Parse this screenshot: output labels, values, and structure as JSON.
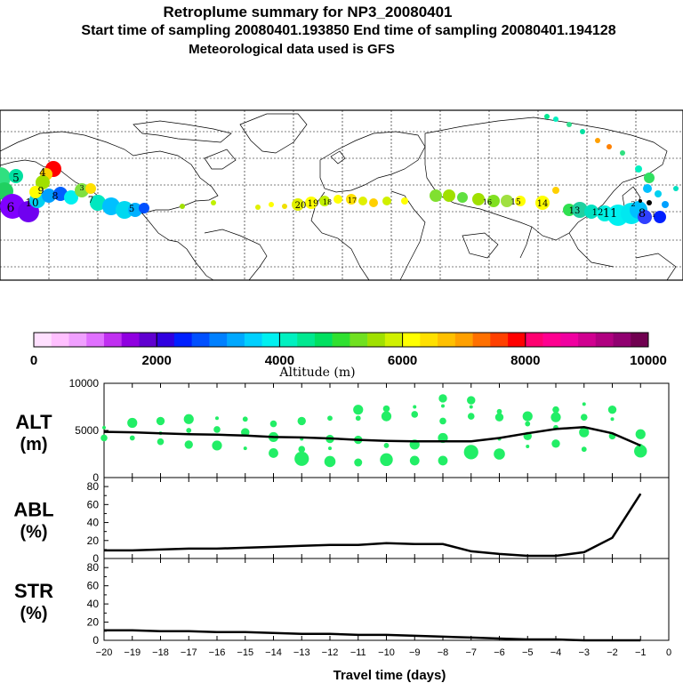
{
  "header": {
    "title": "Retroplume summary for NP3_20080401",
    "sampling": "Start time of sampling 20080401.193850     End time of sampling 20080401.194128",
    "met": "Meteorological data used is GFS"
  },
  "map": {
    "labels": [
      "5",
      "4",
      "6",
      "10",
      "9",
      "8",
      "7",
      "5",
      "3",
      "20",
      "19",
      "18",
      "17",
      "16",
      "15",
      "14",
      "13",
      "12",
      "11",
      "8",
      "2",
      "1"
    ],
    "colors": {
      "coast": "#000000",
      "grid": "#000000"
    }
  },
  "colorbar": {
    "ticks": [
      "0",
      "2000",
      "4000",
      "6000",
      "8000",
      "10000"
    ],
    "label": "Altitude (m)",
    "colors": [
      "#ffe0ff",
      "#ffc0ff",
      "#f0a0ff",
      "#e070ff",
      "#c030f0",
      "#9000e0",
      "#6000d0",
      "#3000e0",
      "#0020ff",
      "#0050ff",
      "#0080ff",
      "#00a8ff",
      "#00d0ff",
      "#00f0f0",
      "#00f0c0",
      "#00e890",
      "#00e060",
      "#30e030",
      "#70e020",
      "#a0e000",
      "#d0f000",
      "#ffff00",
      "#ffe000",
      "#ffc000",
      "#ffa000",
      "#ff7000",
      "#ff4000",
      "#ff0000",
      "#ff0070",
      "#ff0090",
      "#f000a0",
      "#d00090",
      "#b00080",
      "#900070",
      "#700050"
    ]
  },
  "chart_data": [
    {
      "type": "line",
      "name": "ALT",
      "ylabel": "ALT\n(m)",
      "ylabel_top": "ALT",
      "ylabel_bottom": "(m)",
      "x": [
        -20,
        -19,
        -18,
        -17,
        -16,
        -15,
        -14,
        -13,
        -12,
        -11,
        -10,
        -9,
        -8,
        -7,
        -6,
        -5,
        -4,
        -3,
        -2,
        -1
      ],
      "values": [
        4850,
        4800,
        4700,
        4600,
        4550,
        4450,
        4300,
        4250,
        4150,
        4000,
        3900,
        3850,
        3850,
        3850,
        4200,
        4700,
        5150,
        5350,
        4700,
        3400
      ],
      "scatter": [
        {
          "x": -20,
          "y": 5300
        },
        {
          "x": -20,
          "y": 4200
        },
        {
          "x": -19,
          "y": 5800
        },
        {
          "x": -19,
          "y": 4200
        },
        {
          "x": -18,
          "y": 6000
        },
        {
          "x": -18,
          "y": 4700
        },
        {
          "x": -18,
          "y": 3800
        },
        {
          "x": -17,
          "y": 6200
        },
        {
          "x": -17,
          "y": 5000
        },
        {
          "x": -17,
          "y": 3500
        },
        {
          "x": -16,
          "y": 6300
        },
        {
          "x": -16,
          "y": 5100
        },
        {
          "x": -16,
          "y": 3400
        },
        {
          "x": -15,
          "y": 6200
        },
        {
          "x": -15,
          "y": 4800
        },
        {
          "x": -15,
          "y": 3100
        },
        {
          "x": -14,
          "y": 5700
        },
        {
          "x": -14,
          "y": 4300
        },
        {
          "x": -14,
          "y": 2600
        },
        {
          "x": -13,
          "y": 6000
        },
        {
          "x": -13,
          "y": 4100
        },
        {
          "x": -13,
          "y": 3000
        },
        {
          "x": -13,
          "y": 2000
        },
        {
          "x": -12,
          "y": 6300
        },
        {
          "x": -12,
          "y": 4100
        },
        {
          "x": -12,
          "y": 3100
        },
        {
          "x": -12,
          "y": 1700
        },
        {
          "x": -11,
          "y": 7200
        },
        {
          "x": -11,
          "y": 6300
        },
        {
          "x": -11,
          "y": 4000
        },
        {
          "x": -11,
          "y": 1600
        },
        {
          "x": -10,
          "y": 7300
        },
        {
          "x": -10,
          "y": 6500
        },
        {
          "x": -10,
          "y": 3400
        },
        {
          "x": -10,
          "y": 1900
        },
        {
          "x": -9,
          "y": 7500
        },
        {
          "x": -9,
          "y": 6700
        },
        {
          "x": -9,
          "y": 3500
        },
        {
          "x": -9,
          "y": 1800
        },
        {
          "x": -8,
          "y": 8400
        },
        {
          "x": -8,
          "y": 7600
        },
        {
          "x": -8,
          "y": 6000
        },
        {
          "x": -8,
          "y": 4200
        },
        {
          "x": -8,
          "y": 1800
        },
        {
          "x": -7,
          "y": 8200
        },
        {
          "x": -7,
          "y": 7500
        },
        {
          "x": -7,
          "y": 6500
        },
        {
          "x": -7,
          "y": 2700
        },
        {
          "x": -6,
          "y": 7000
        },
        {
          "x": -6,
          "y": 6400
        },
        {
          "x": -6,
          "y": 4100
        },
        {
          "x": -6,
          "y": 2500
        },
        {
          "x": -5,
          "y": 6500
        },
        {
          "x": -5,
          "y": 5700
        },
        {
          "x": -5,
          "y": 4400
        },
        {
          "x": -5,
          "y": 3300
        },
        {
          "x": -4,
          "y": 7200
        },
        {
          "x": -4,
          "y": 6400
        },
        {
          "x": -4,
          "y": 5300
        },
        {
          "x": -4,
          "y": 3600
        },
        {
          "x": -3,
          "y": 7800
        },
        {
          "x": -3,
          "y": 6400
        },
        {
          "x": -3,
          "y": 4800
        },
        {
          "x": -3,
          "y": 3000
        },
        {
          "x": -2,
          "y": 7200
        },
        {
          "x": -2,
          "y": 6200
        },
        {
          "x": -2,
          "y": 4400
        },
        {
          "x": -1,
          "y": 4600
        },
        {
          "x": -1,
          "y": 3300
        },
        {
          "x": -1,
          "y": 2800
        }
      ],
      "ylim": [
        0,
        10000
      ],
      "yticks": [
        "10000",
        "5000",
        "0"
      ],
      "line_color": "#000000",
      "scatter_color": "#22ee66"
    },
    {
      "type": "line",
      "name": "ABL",
      "ylabel_top": "ABL",
      "ylabel_bottom": "(%)",
      "x": [
        -20,
        -19,
        -18,
        -17,
        -16,
        -15,
        -14,
        -13,
        -12,
        -11,
        -10,
        -9,
        -8,
        -7,
        -6,
        -5,
        -4,
        -3,
        -2,
        -1
      ],
      "values": [
        9,
        9,
        10,
        11,
        11,
        12,
        13,
        14,
        15,
        15,
        17,
        16,
        16,
        8,
        5,
        3,
        3,
        7,
        23,
        72
      ],
      "ylim": [
        0,
        90
      ],
      "yticks": [
        "80",
        "60",
        "40",
        "20",
        "0"
      ],
      "line_color": "#000000"
    },
    {
      "type": "line",
      "name": "STR",
      "ylabel_top": "STR",
      "ylabel_bottom": "(%)",
      "x": [
        -20,
        -19,
        -18,
        -17,
        -16,
        -15,
        -14,
        -13,
        -12,
        -11,
        -10,
        -9,
        -8,
        -7,
        -6,
        -5,
        -4,
        -3,
        -2,
        -1
      ],
      "values": [
        11,
        11,
        10,
        10,
        9,
        9,
        8,
        7,
        7,
        6,
        6,
        5,
        4,
        3,
        2,
        1,
        1,
        0,
        0,
        0
      ],
      "ylim": [
        0,
        90
      ],
      "yticks": [
        "80",
        "60",
        "40",
        "20",
        "0"
      ],
      "xlabel": "Travel time (days)",
      "xticks": [
        "−20",
        "−19",
        "−18",
        "−17",
        "−16",
        "−15",
        "−14",
        "−13",
        "−12",
        "−11",
        "−10",
        "−9",
        "−8",
        "−7",
        "−6",
        "−5",
        "−4",
        "−3",
        "−2",
        "−1",
        "0"
      ],
      "line_color": "#000000"
    }
  ]
}
